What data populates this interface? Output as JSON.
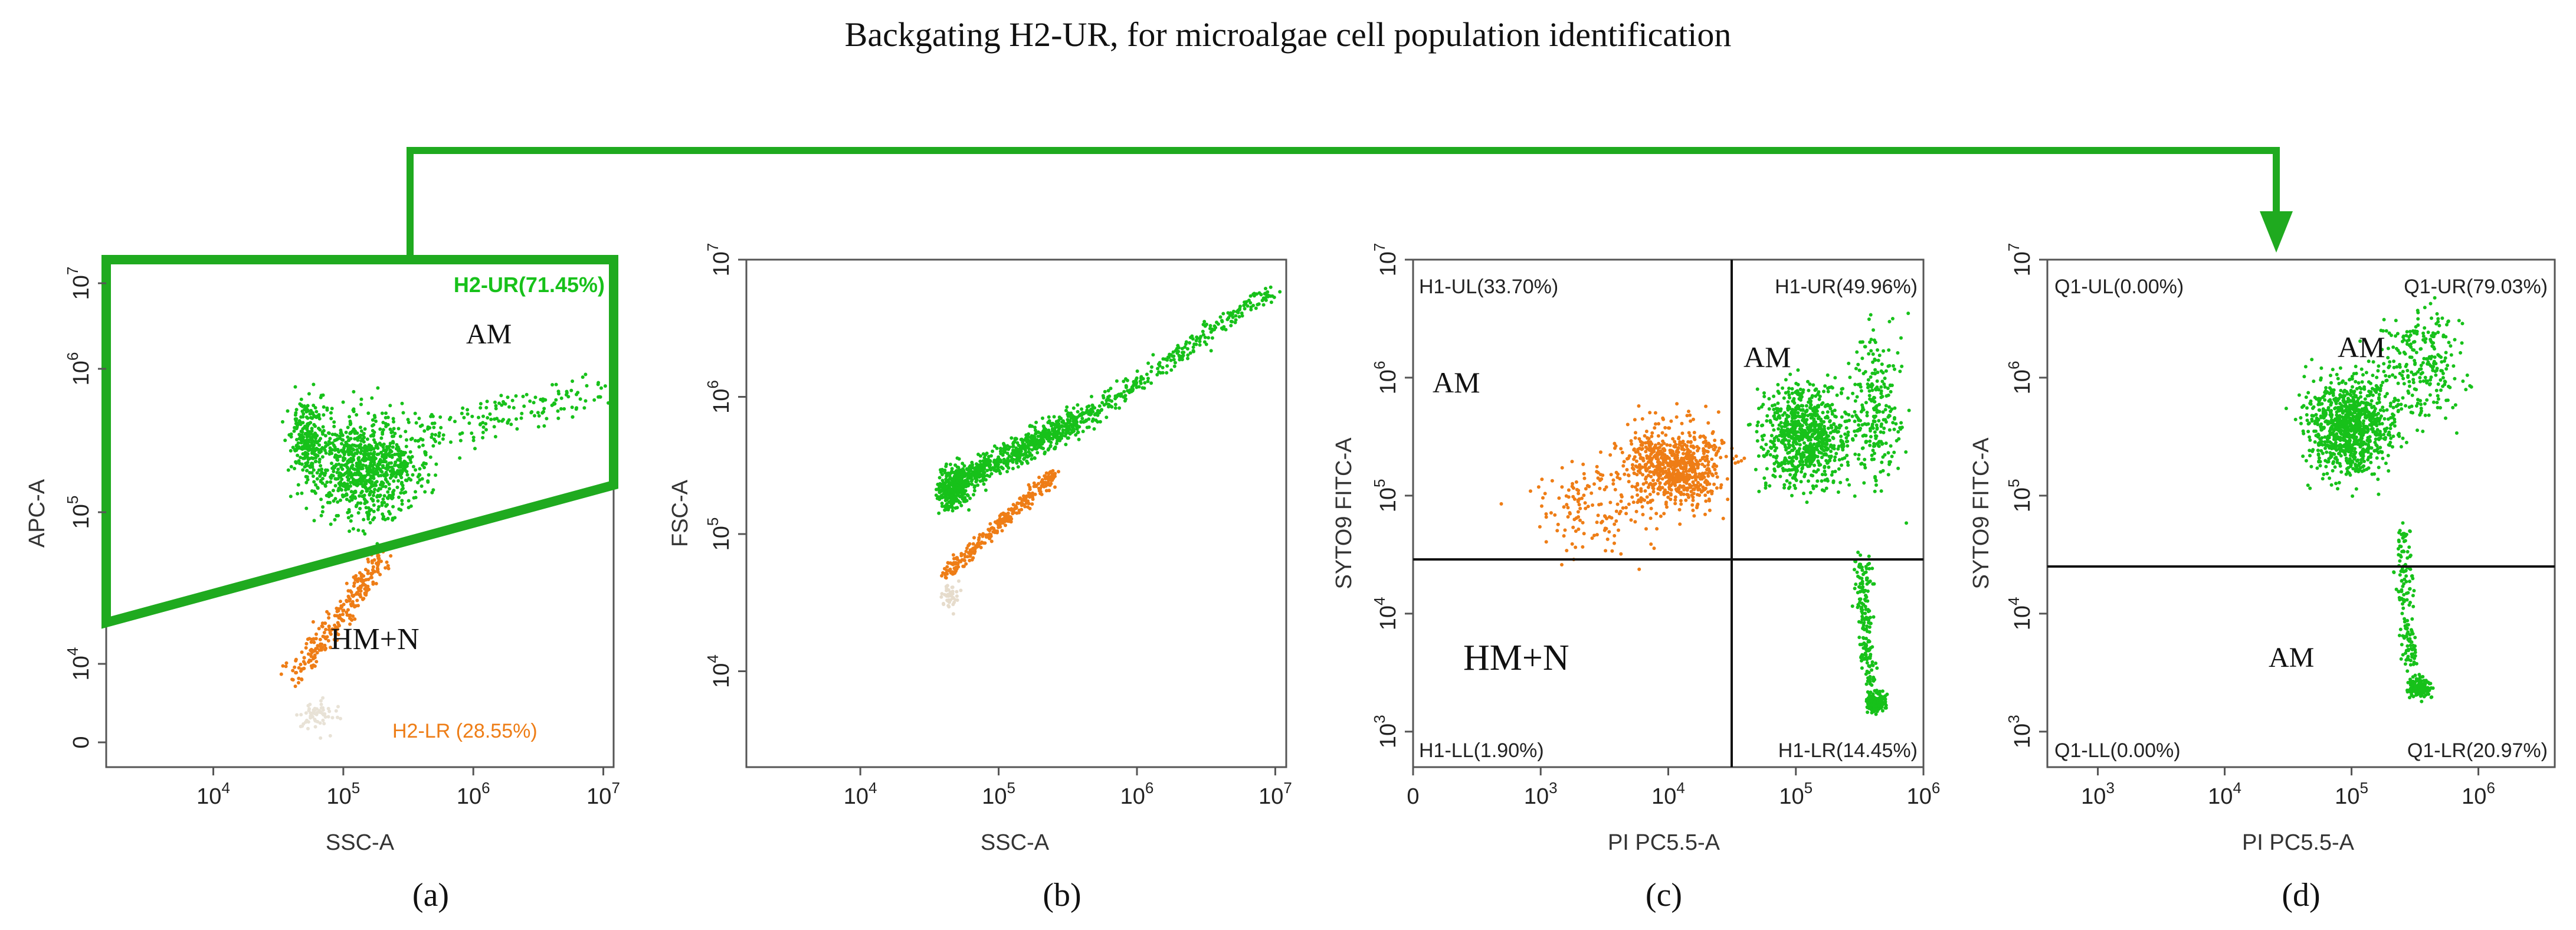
{
  "figure": {
    "title": "Backgating H2-UR, for microalgae cell population identification",
    "colors": {
      "green": "#17c11a",
      "orange": "#ee7d16",
      "gate": "#1faa1f",
      "axis": "#555555",
      "quad": "#111111"
    }
  },
  "chart_data": [
    {
      "type": "scatter",
      "panel_label": "(a)",
      "xlabel": "SSC-A",
      "ylabel": "APC-A",
      "x_scale": "log",
      "xlim": [
        1500,
        12000000
      ],
      "x_ticks": [
        {
          "v": 10000,
          "label": "10^4"
        },
        {
          "v": 100000,
          "label": "10^5"
        },
        {
          "v": 1000000,
          "label": "10^6"
        },
        {
          "v": 10000000,
          "label": "10^7"
        }
      ],
      "y_ticks": [
        {
          "v": 0,
          "label": "0"
        },
        {
          "v": 10000,
          "label": "10^4"
        },
        {
          "v": 100000,
          "label": "10^5"
        },
        {
          "v": 1000000,
          "label": "10^6"
        },
        {
          "v": 10000000,
          "label": "10^7"
        }
      ],
      "gate_label": "H2-UR(71.45%)",
      "lower_label": "H2-LR (28.55%)",
      "annotations": [
        "AM",
        "HM+N"
      ],
      "series": [
        {
          "name": "H2-UR",
          "color_key": "green",
          "percent": 71.45
        },
        {
          "name": "H2-LR",
          "color_key": "orange",
          "percent": 28.55
        }
      ]
    },
    {
      "type": "scatter",
      "panel_label": "(b)",
      "xlabel": "SSC-A",
      "ylabel": "FSC-A",
      "x_scale": "log",
      "y_scale": "log",
      "xlim": [
        1500,
        12000000
      ],
      "ylim": [
        2000,
        10000000
      ],
      "x_ticks": [
        {
          "v": 10000,
          "label": "10^4"
        },
        {
          "v": 100000,
          "label": "10^5"
        },
        {
          "v": 1000000,
          "label": "10^6"
        },
        {
          "v": 10000000,
          "label": "10^7"
        }
      ],
      "y_ticks": [
        {
          "v": 10000,
          "label": "10^4"
        },
        {
          "v": 100000,
          "label": "10^5"
        },
        {
          "v": 1000000,
          "label": "10^6"
        },
        {
          "v": 10000000,
          "label": "10^7"
        }
      ],
      "series": [
        {
          "name": "H2-UR",
          "color_key": "green"
        },
        {
          "name": "H2-LR",
          "color_key": "orange"
        }
      ]
    },
    {
      "type": "scatter",
      "panel_label": "(c)",
      "xlabel": "PI PC5.5-A",
      "ylabel": "SYTO9 FITC-A",
      "x_scale": "log",
      "y_scale": "log",
      "xlim": [
        100,
        1000000
      ],
      "ylim": [
        500,
        10000000
      ],
      "x_ticks": [
        {
          "v": 100,
          "label": "0"
        },
        {
          "v": 1000,
          "label": "10^3"
        },
        {
          "v": 10000,
          "label": "10^4"
        },
        {
          "v": 100000,
          "label": "10^5"
        },
        {
          "v": 1000000,
          "label": "10^6"
        }
      ],
      "y_ticks": [
        {
          "v": 1000,
          "label": "10^3"
        },
        {
          "v": 10000,
          "label": "10^4"
        },
        {
          "v": 100000,
          "label": "10^5"
        },
        {
          "v": 1000000,
          "label": "10^6"
        },
        {
          "v": 10000000,
          "label": "10^7"
        }
      ],
      "quadrant_divider": {
        "x": 33000,
        "y": 28000
      },
      "quadrants": {
        "UL": "H1-UL(33.70%)",
        "UR": "H1-UR(49.96%)",
        "LL": "H1-LL(1.90%)",
        "LR": "H1-LR(14.45%)"
      },
      "quadrant_percent": {
        "UL": 33.7,
        "UR": 49.96,
        "LL": 1.9,
        "LR": 14.45
      },
      "annotations": [
        "AM",
        "AM",
        "HM+N"
      ],
      "series": [
        {
          "name": "H2-UR",
          "color_key": "green"
        },
        {
          "name": "H2-LR",
          "color_key": "orange"
        }
      ]
    },
    {
      "type": "scatter",
      "panel_label": "(d)",
      "xlabel": "PI PC5.5-A",
      "ylabel": "SYTO9 FITC-A",
      "x_scale": "log",
      "y_scale": "log",
      "xlim": [
        400,
        4000000
      ],
      "ylim": [
        500,
        10000000
      ],
      "x_ticks": [
        {
          "v": 1000,
          "label": "10^3"
        },
        {
          "v": 10000,
          "label": "10^4"
        },
        {
          "v": 100000,
          "label": "10^5"
        },
        {
          "v": 1000000,
          "label": "10^6"
        }
      ],
      "y_ticks": [
        {
          "v": 1000,
          "label": "10^3"
        },
        {
          "v": 10000,
          "label": "10^4"
        },
        {
          "v": 100000,
          "label": "10^5"
        },
        {
          "v": 1000000,
          "label": "10^6"
        },
        {
          "v": 10000000,
          "label": "10^7"
        }
      ],
      "quadrant_divider": {
        "y": 24000
      },
      "quadrants": {
        "UL": "Q1-UL(0.00%)",
        "UR": "Q1-UR(79.03%)",
        "LL": "Q1-LL(0.00%)",
        "LR": "Q1-LR(20.97%)"
      },
      "quadrant_percent": {
        "UL": 0.0,
        "UR": 79.03,
        "LL": 0.0,
        "LR": 20.97
      },
      "annotations": [
        "AM",
        "AM"
      ],
      "series": [
        {
          "name": "H2-UR",
          "color_key": "green"
        }
      ]
    }
  ]
}
